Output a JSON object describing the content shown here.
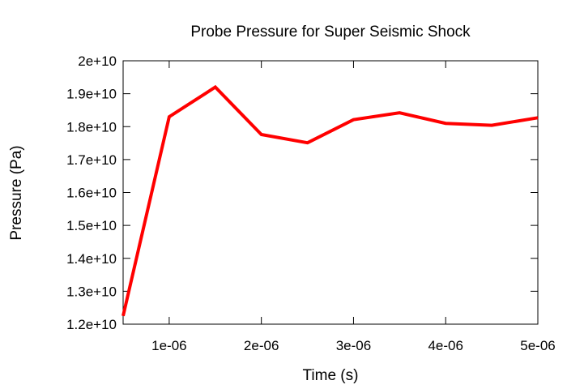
{
  "chart_data": {
    "type": "line",
    "title": "Probe Pressure for Super Seismic Shock",
    "xlabel": "Time (s)",
    "ylabel": "Pressure (Pa)",
    "xlim": [
      5e-07,
      5e-06
    ],
    "ylim": [
      12000000000.0,
      20000000000.0
    ],
    "grid": false,
    "x_ticks": [
      {
        "value": 1e-06,
        "label": "1e-06"
      },
      {
        "value": 2e-06,
        "label": "2e-06"
      },
      {
        "value": 3e-06,
        "label": "3e-06"
      },
      {
        "value": 4e-06,
        "label": "4e-06"
      },
      {
        "value": 5e-06,
        "label": "5e-06"
      }
    ],
    "y_ticks": [
      {
        "value": 12000000000.0,
        "label": "1.2e+10"
      },
      {
        "value": 13000000000.0,
        "label": "1.3e+10"
      },
      {
        "value": 14000000000.0,
        "label": "1.4e+10"
      },
      {
        "value": 15000000000.0,
        "label": "1.5e+10"
      },
      {
        "value": 16000000000.0,
        "label": "1.6e+10"
      },
      {
        "value": 17000000000.0,
        "label": "1.7e+10"
      },
      {
        "value": 18000000000.0,
        "label": "1.8e+10"
      },
      {
        "value": 19000000000.0,
        "label": "1.9e+10"
      },
      {
        "value": 20000000000.0,
        "label": "2e+10"
      }
    ],
    "series": [
      {
        "color": "#ff0000",
        "x": [
          5e-07,
          1e-06,
          1.5e-06,
          2e-06,
          2.5e-06,
          3e-06,
          3.5e-06,
          4e-06,
          4.5e-06,
          5e-06
        ],
        "y": [
          12250000000.0,
          18300000000.0,
          19200000000.0,
          17760000000.0,
          17510000000.0,
          18210000000.0,
          18420000000.0,
          18100000000.0,
          18040000000.0,
          18270000000.0
        ]
      }
    ]
  }
}
